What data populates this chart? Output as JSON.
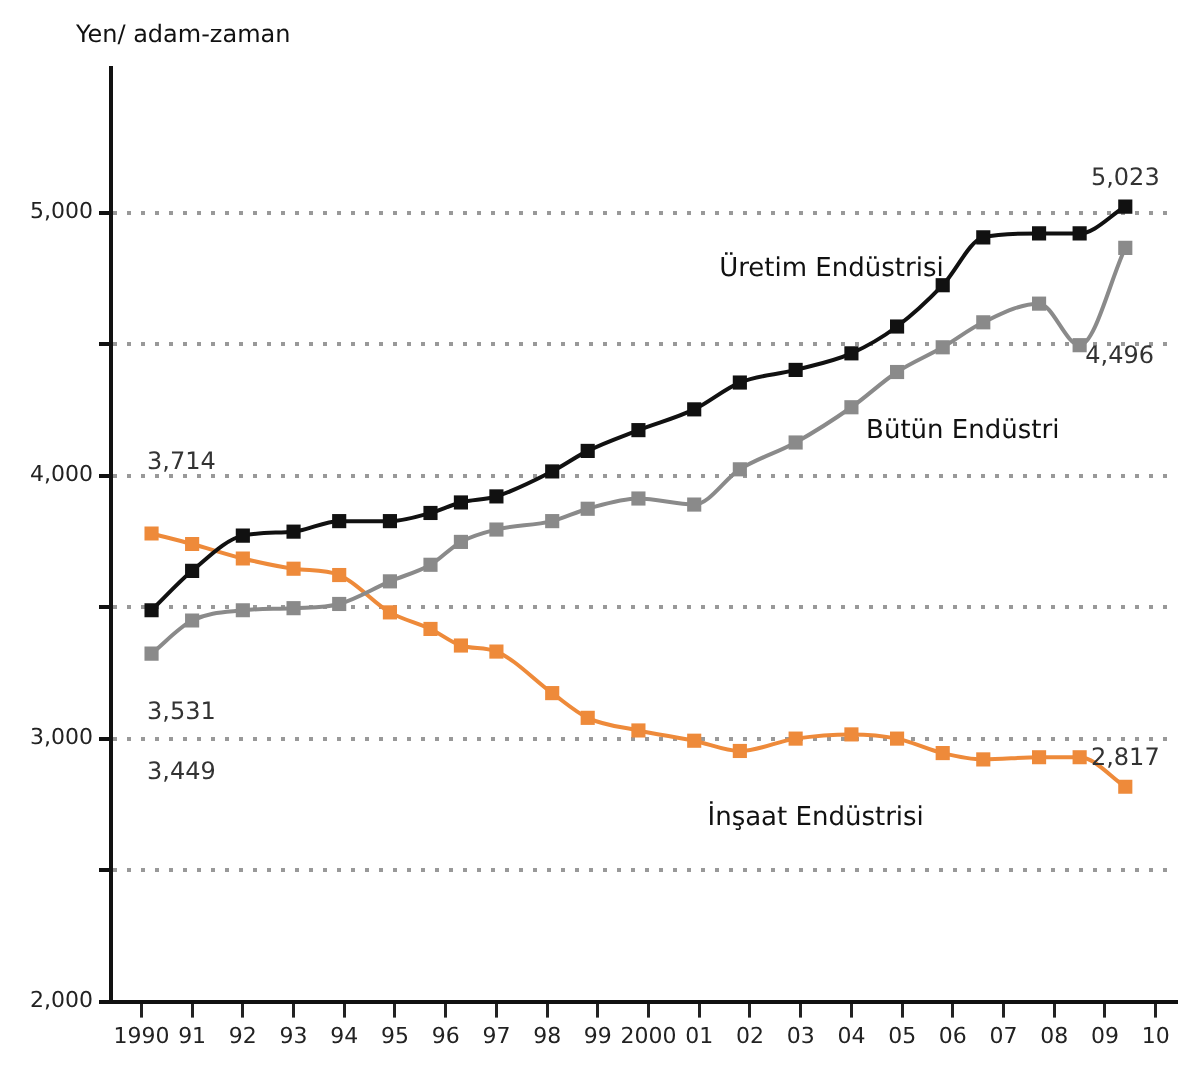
{
  "chart_data": {
    "type": "line",
    "ylabel": "Yen/ adam-zaman",
    "x": [
      1990.2,
      1991.0,
      1992.0,
      1993.0,
      1993.9,
      1994.9,
      1995.7,
      1996.3,
      1997.0,
      1998.1,
      1998.8,
      1999.8,
      2000.9,
      2001.8,
      2002.9,
      2004.0,
      2004.9,
      2005.8,
      2006.6,
      2007.7,
      2008.5,
      2009.4
    ],
    "series": [
      {
        "name": "Üretim Endüstrisi",
        "color": "#111111",
        "values": [
          3488,
          3638,
          3772,
          3787,
          3827,
          3827,
          3858,
          3898,
          3921,
          4016,
          4094,
          4173,
          4252,
          4354,
          4402,
          4465,
          4567,
          4724,
          4906,
          4921,
          4921,
          5023
        ],
        "value_labels": [
          null,
          null,
          null,
          null,
          null,
          null,
          null,
          null,
          null,
          null,
          null,
          null,
          null,
          null,
          null,
          null,
          null,
          null,
          null,
          null,
          null,
          "5,023"
        ]
      },
      {
        "name": "Bütün Endüstri",
        "color": "#8a8a8a",
        "values": [
          3323,
          3449,
          3488,
          3496,
          3512,
          3598,
          3661,
          3748,
          3795,
          3827,
          3874,
          3913,
          3890,
          4024,
          4126,
          4260,
          4394,
          4488,
          4583,
          4654,
          4496,
          4866
        ],
        "value_labels": [
          null,
          null,
          null,
          null,
          null,
          null,
          null,
          null,
          null,
          null,
          null,
          null,
          null,
          null,
          null,
          null,
          null,
          null,
          null,
          null,
          "4,496",
          null
        ]
      },
      {
        "name": "İnşaat Endüstrisi",
        "color": "#ee8a3a",
        "values": [
          3780,
          3740,
          3685,
          3646,
          3622,
          3480,
          3417,
          3354,
          3331,
          3173,
          3079,
          3031,
          2992,
          2953,
          3000,
          3016,
          3000,
          2945,
          2921,
          2929,
          2929,
          2817
        ],
        "value_labels": [
          null,
          null,
          null,
          null,
          null,
          null,
          null,
          null,
          null,
          null,
          null,
          null,
          null,
          null,
          null,
          null,
          null,
          null,
          null,
          null,
          null,
          "2,817"
        ]
      }
    ],
    "xlim": [
      1989.4,
      2010.4
    ],
    "xticks": [
      {
        "value": 1990,
        "label": "1990"
      },
      {
        "value": 1991,
        "label": "91"
      },
      {
        "value": 1992,
        "label": "92"
      },
      {
        "value": 1993,
        "label": "93"
      },
      {
        "value": 1994,
        "label": "94"
      },
      {
        "value": 1995,
        "label": "95"
      },
      {
        "value": 1996,
        "label": "96"
      },
      {
        "value": 1997,
        "label": "97"
      },
      {
        "value": 1998,
        "label": "98"
      },
      {
        "value": 1999,
        "label": "99"
      },
      {
        "value": 2000,
        "label": "2000"
      },
      {
        "value": 2001,
        "label": "01"
      },
      {
        "value": 2002,
        "label": "02"
      },
      {
        "value": 2003,
        "label": "03"
      },
      {
        "value": 2004,
        "label": "04"
      },
      {
        "value": 2005,
        "label": "05"
      },
      {
        "value": 2006,
        "label": "06"
      },
      {
        "value": 2007,
        "label": "07"
      },
      {
        "value": 2008,
        "label": "08"
      },
      {
        "value": 2009,
        "label": "09"
      },
      {
        "value": 2010,
        "label": "10"
      }
    ],
    "ylim": [
      2000,
      5550
    ],
    "yticks": [
      {
        "value": 2000,
        "label": "2,000"
      },
      {
        "value": 2500,
        "label": null
      },
      {
        "value": 3000,
        "label": "3,000"
      },
      {
        "value": 3500,
        "label": null
      },
      {
        "value": 4000,
        "label": "4,000"
      },
      {
        "value": 4500,
        "label": null
      },
      {
        "value": 5000,
        "label": "5,000"
      }
    ],
    "annotations": [
      "3,714",
      "3,531",
      "3,449"
    ],
    "grid": "y",
    "legend": false,
    "marker": "square",
    "line_style": "solid"
  }
}
